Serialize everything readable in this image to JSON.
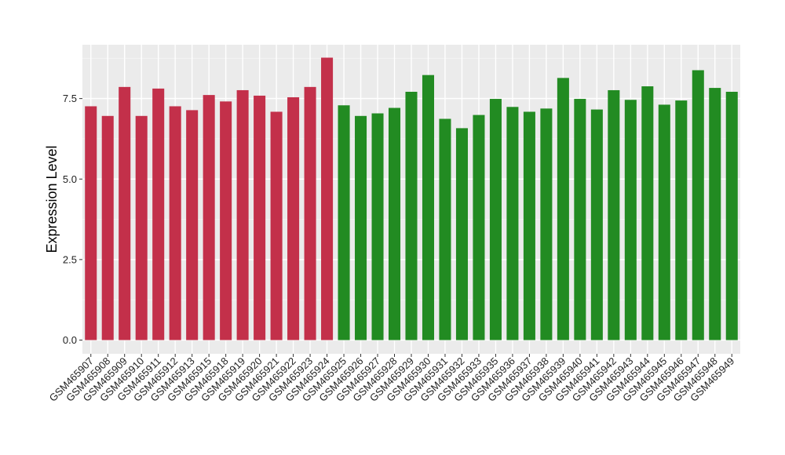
{
  "chart_data": {
    "type": "bar",
    "title": "",
    "xlabel": "",
    "ylabel": "Expression Level",
    "ylim": [
      0,
      9.05
    ],
    "y_ticks": [
      0.0,
      2.5,
      5.0,
      7.5
    ],
    "y_tick_labels": [
      "0.0",
      "2.5",
      "5.0",
      "7.5"
    ],
    "grid": true,
    "legend": "none",
    "colors": {
      "group1": "#c3304a",
      "group2": "#228b22",
      "panel": "#ebebeb",
      "grid": "#ffffff"
    },
    "categories": [
      "GSM465907",
      "GSM465908",
      "GSM465909",
      "GSM465910",
      "GSM465911",
      "GSM465912",
      "GSM465913",
      "GSM465915",
      "GSM465918",
      "GSM465919",
      "GSM465920",
      "GSM465921",
      "GSM465922",
      "GSM465923",
      "GSM465924",
      "GSM465925",
      "GSM465926",
      "GSM465927",
      "GSM465928",
      "GSM465929",
      "GSM465930",
      "GSM465931",
      "GSM465932",
      "GSM465933",
      "GSM465935",
      "GSM465936",
      "GSM465937",
      "GSM465938",
      "GSM465939",
      "GSM465940",
      "GSM465941",
      "GSM465942",
      "GSM465943",
      "GSM465944",
      "GSM465945",
      "GSM465946",
      "GSM465947",
      "GSM465948",
      "GSM465949"
    ],
    "values": [
      7.26,
      6.96,
      7.86,
      6.96,
      7.81,
      7.26,
      7.14,
      7.61,
      7.41,
      7.76,
      7.59,
      7.09,
      7.54,
      7.86,
      8.77,
      7.29,
      6.96,
      7.04,
      7.21,
      7.71,
      8.23,
      6.87,
      6.58,
      6.99,
      7.49,
      7.24,
      7.09,
      7.19,
      8.14,
      7.49,
      7.16,
      7.76,
      7.46,
      7.88,
      7.31,
      7.44,
      8.38,
      7.83,
      7.71
    ],
    "groups": [
      1,
      1,
      1,
      1,
      1,
      1,
      1,
      1,
      1,
      1,
      1,
      1,
      1,
      1,
      1,
      2,
      2,
      2,
      2,
      2,
      2,
      2,
      2,
      2,
      2,
      2,
      2,
      2,
      2,
      2,
      2,
      2,
      2,
      2,
      2,
      2,
      2,
      2,
      2
    ]
  }
}
